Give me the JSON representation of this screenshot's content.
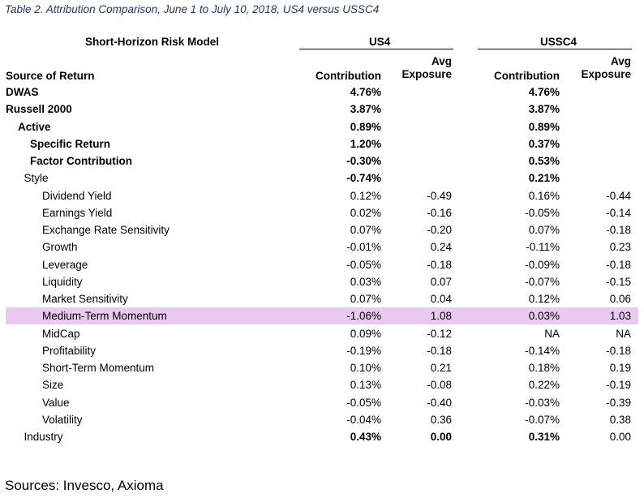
{
  "caption": "Table 2. Attribution Comparison, June 1 to July 10, 2018, US4 versus USSC4",
  "header": {
    "model_label": "Short-Horizon Risk Model",
    "group_us4": "US4",
    "group_ussc4": "USSC4",
    "source_label": "Source of Return",
    "contribution": "Contribution",
    "avg_exposure_line1": "Avg",
    "avg_exposure_line2": "Exposure"
  },
  "rows": [
    {
      "label": "DWAS",
      "indent": 0,
      "bold": true,
      "us4_contribution": "4.76%",
      "us4_exposure": "",
      "ussc4_contribution": "4.76%",
      "ussc4_exposure": "",
      "highlight": false
    },
    {
      "label": "Russell 2000",
      "indent": 0,
      "bold": true,
      "us4_contribution": "3.87%",
      "us4_exposure": "",
      "ussc4_contribution": "3.87%",
      "ussc4_exposure": "",
      "highlight": false
    },
    {
      "label": "Active",
      "indent": 1,
      "bold": true,
      "us4_contribution": "0.89%",
      "us4_exposure": "",
      "ussc4_contribution": "0.89%",
      "ussc4_exposure": "",
      "highlight": false
    },
    {
      "label": "Specific Return",
      "indent": 2,
      "bold": true,
      "us4_contribution": "1.20%",
      "us4_exposure": "",
      "ussc4_contribution": "0.37%",
      "ussc4_exposure": "",
      "highlight": false
    },
    {
      "label": "Factor Contribution",
      "indent": 2,
      "bold": true,
      "us4_contribution": "-0.30%",
      "us4_exposure": "",
      "ussc4_contribution": "0.53%",
      "ussc4_exposure": "",
      "highlight": false
    },
    {
      "label": "Style",
      "indent": 1.5,
      "bold": false,
      "num_bold": true,
      "us4_contribution": "-0.74%",
      "us4_exposure": "",
      "ussc4_contribution": "0.21%",
      "ussc4_exposure": "",
      "highlight": false
    },
    {
      "label": "Dividend Yield",
      "indent": 3,
      "bold": false,
      "us4_contribution": "0.12%",
      "us4_exposure": "-0.49",
      "ussc4_contribution": "0.16%",
      "ussc4_exposure": "-0.44",
      "highlight": false
    },
    {
      "label": "Earnings Yield",
      "indent": 3,
      "bold": false,
      "us4_contribution": "0.02%",
      "us4_exposure": "-0.16",
      "ussc4_contribution": "-0.05%",
      "ussc4_exposure": "-0.14",
      "highlight": false
    },
    {
      "label": "Exchange Rate Sensitivity",
      "indent": 3,
      "bold": false,
      "us4_contribution": "0.07%",
      "us4_exposure": "-0.20",
      "ussc4_contribution": "0.07%",
      "ussc4_exposure": "-0.18",
      "highlight": false
    },
    {
      "label": "Growth",
      "indent": 3,
      "bold": false,
      "us4_contribution": "-0.01%",
      "us4_exposure": "0.24",
      "ussc4_contribution": "-0.11%",
      "ussc4_exposure": "0.23",
      "highlight": false
    },
    {
      "label": "Leverage",
      "indent": 3,
      "bold": false,
      "us4_contribution": "-0.05%",
      "us4_exposure": "-0.18",
      "ussc4_contribution": "-0.09%",
      "ussc4_exposure": "-0.18",
      "highlight": false
    },
    {
      "label": "Liquidity",
      "indent": 3,
      "bold": false,
      "us4_contribution": "0.03%",
      "us4_exposure": "0.07",
      "ussc4_contribution": "-0.07%",
      "ussc4_exposure": "-0.15",
      "highlight": false
    },
    {
      "label": "Market Sensitivity",
      "indent": 3,
      "bold": false,
      "us4_contribution": "0.07%",
      "us4_exposure": "0.04",
      "ussc4_contribution": "0.12%",
      "ussc4_exposure": "0.06",
      "highlight": false
    },
    {
      "label": "Medium-Term Momentum",
      "indent": 3,
      "bold": false,
      "us4_contribution": "-1.06%",
      "us4_exposure": "1.08",
      "ussc4_contribution": "0.03%",
      "ussc4_exposure": "1.03",
      "highlight": true
    },
    {
      "label": "MidCap",
      "indent": 3,
      "bold": false,
      "us4_contribution": "0.09%",
      "us4_exposure": "-0.12",
      "ussc4_contribution": "NA",
      "ussc4_exposure": "NA",
      "highlight": false
    },
    {
      "label": "Profitability",
      "indent": 3,
      "bold": false,
      "us4_contribution": "-0.19%",
      "us4_exposure": "-0.18",
      "ussc4_contribution": "-0.14%",
      "ussc4_exposure": "-0.18",
      "highlight": false
    },
    {
      "label": "Short-Term Momentum",
      "indent": 3,
      "bold": false,
      "us4_contribution": "0.10%",
      "us4_exposure": "0.21",
      "ussc4_contribution": "0.18%",
      "ussc4_exposure": "0.19",
      "highlight": false
    },
    {
      "label": "Size",
      "indent": 3,
      "bold": false,
      "us4_contribution": "0.13%",
      "us4_exposure": "-0.08",
      "ussc4_contribution": "0.22%",
      "ussc4_exposure": "-0.19",
      "highlight": false
    },
    {
      "label": "Value",
      "indent": 3,
      "bold": false,
      "us4_contribution": "-0.05%",
      "us4_exposure": "-0.40",
      "ussc4_contribution": "-0.03%",
      "ussc4_exposure": "-0.39",
      "highlight": false
    },
    {
      "label": "Volatility",
      "indent": 3,
      "bold": false,
      "us4_contribution": "-0.04%",
      "us4_exposure": "0.36",
      "ussc4_contribution": "-0.07%",
      "ussc4_exposure": "0.38",
      "highlight": false
    },
    {
      "label": "Industry",
      "indent": 1.5,
      "bold": false,
      "num_bold": true,
      "us4_contribution": "0.43%",
      "us4_exposure": "0.00",
      "ussc4_contribution": "0.31%",
      "ussc4_exposure": "0.00",
      "highlight": false,
      "ussc4_exposure_plain": true
    }
  ],
  "sources": "Sources: Invesco, Axioma",
  "colors": {
    "highlight": "#e9c9f0",
    "caption": "#1f3864"
  }
}
